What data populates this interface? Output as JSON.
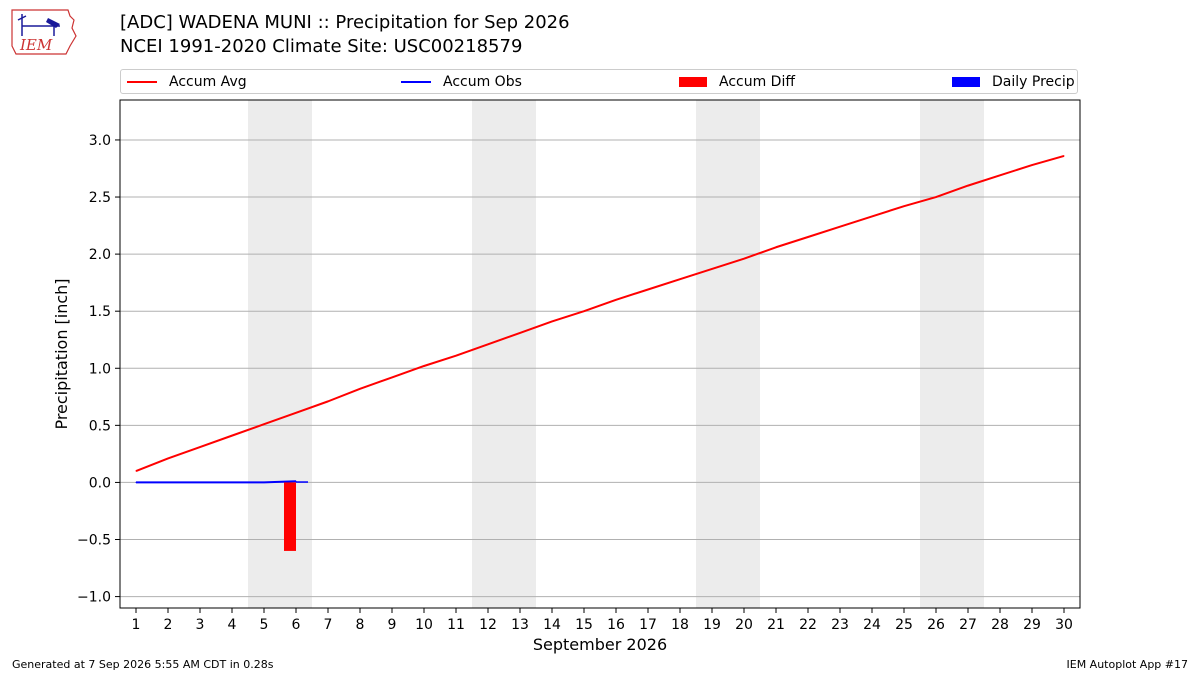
{
  "header": {
    "logo_text": "IEM",
    "title": "[ADC] WADENA MUNI :: Precipitation for Sep 2026",
    "subtitle": "NCEI 1991-2020 Climate Site: USC00218579"
  },
  "legend": [
    {
      "label": "Accum Avg",
      "kind": "line",
      "color": "#ff0000"
    },
    {
      "label": "Accum Obs",
      "kind": "line",
      "color": "#0000ff"
    },
    {
      "label": "Accum Diff",
      "kind": "box",
      "color": "#ff0000"
    },
    {
      "label": "Daily Precip",
      "kind": "box",
      "color": "#0000ff"
    }
  ],
  "chart_data": {
    "type": "line",
    "xlabel": "September 2026",
    "ylabel": "Precipitation [inch]",
    "xlim": [
      0.5,
      30.5
    ],
    "ylim": [
      -1.1,
      3.35
    ],
    "x_ticks": [
      1,
      2,
      3,
      4,
      5,
      6,
      7,
      8,
      9,
      10,
      11,
      12,
      13,
      14,
      15,
      16,
      17,
      18,
      19,
      20,
      21,
      22,
      23,
      24,
      25,
      26,
      27,
      28,
      29,
      30
    ],
    "y_ticks": [
      -1.0,
      -0.5,
      0.0,
      0.5,
      1.0,
      1.5,
      2.0,
      2.5,
      3.0
    ],
    "y_tick_labels": [
      "−1.0",
      "−0.5",
      "0.0",
      "0.5",
      "1.0",
      "1.5",
      "2.0",
      "2.5",
      "3.0"
    ],
    "grid": "horizontal",
    "weekend_shading": [
      [
        4.5,
        6.5
      ],
      [
        11.5,
        13.5
      ],
      [
        18.5,
        20.5
      ],
      [
        25.5,
        27.5
      ]
    ],
    "series": [
      {
        "name": "Accum Avg",
        "type": "line",
        "color": "#ff0000",
        "x": [
          1,
          2,
          3,
          4,
          5,
          6,
          7,
          8,
          9,
          10,
          11,
          12,
          13,
          14,
          15,
          16,
          17,
          18,
          19,
          20,
          21,
          22,
          23,
          24,
          25,
          26,
          27,
          28,
          29,
          30
        ],
        "values": [
          0.1,
          0.21,
          0.31,
          0.41,
          0.51,
          0.61,
          0.71,
          0.82,
          0.92,
          1.02,
          1.11,
          1.21,
          1.31,
          1.41,
          1.5,
          1.6,
          1.69,
          1.78,
          1.87,
          1.96,
          2.06,
          2.15,
          2.24,
          2.33,
          2.42,
          2.5,
          2.6,
          2.69,
          2.78,
          2.86
        ]
      },
      {
        "name": "Accum Obs",
        "type": "line",
        "color": "#0000ff",
        "x": [
          1,
          2,
          3,
          4,
          5,
          6
        ],
        "values": [
          0,
          0,
          0,
          0,
          0,
          0.01
        ]
      },
      {
        "name": "Accum Diff",
        "type": "bar",
        "color": "#ff0000",
        "x": [
          6
        ],
        "values": [
          -0.6
        ]
      },
      {
        "name": "Daily Precip",
        "type": "bar",
        "color": "#0000ff",
        "x": [
          6
        ],
        "values": [
          0.01
        ]
      }
    ]
  },
  "footer": {
    "generated": "Generated at 7 Sep 2026 5:55 AM CDT in 0.28s",
    "app": "IEM Autoplot App #17"
  }
}
